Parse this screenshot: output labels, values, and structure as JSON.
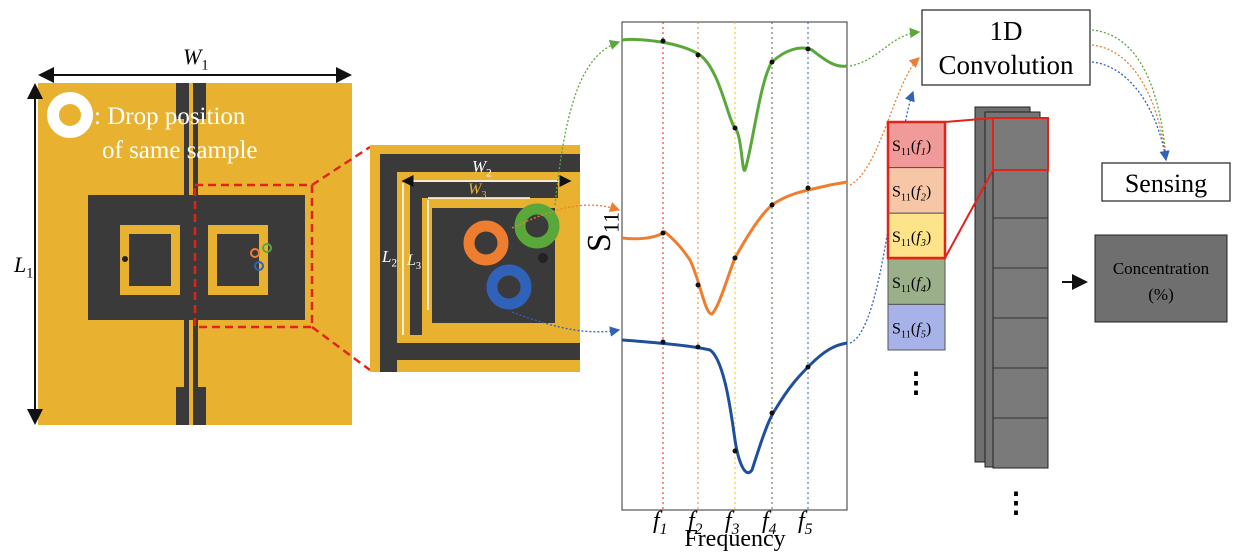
{
  "board": {
    "width_label": {
      "text": "W",
      "sub": "1"
    },
    "length_label": {
      "text": "L",
      "sub": "1"
    },
    "legend": [
      ": Drop position",
      "of same sample"
    ]
  },
  "zoom": {
    "w2": {
      "text": "W",
      "sub": "2"
    },
    "w3": {
      "text": "W",
      "sub": "3"
    },
    "l2": {
      "text": "L",
      "sub": "2"
    },
    "l3": {
      "text": "L",
      "sub": "3"
    }
  },
  "plot": {
    "y_label": {
      "text": "S",
      "sub": "11"
    },
    "x_ticks": [
      {
        "var": "f",
        "var_sub": "1"
      },
      {
        "var": "f",
        "var_sub": "2"
      },
      {
        "var": "f",
        "var_sub": "3"
      },
      {
        "var": "f",
        "var_sub": "4"
      },
      {
        "var": "f",
        "var_sub": "5"
      }
    ],
    "x_label": "Frequency"
  },
  "features": {
    "cells": [
      {
        "text": "S",
        "sub": "11",
        "open": "(",
        "var": "f",
        "var_sub": "1",
        "close": ")"
      },
      {
        "text": "S",
        "sub": "11",
        "open": "(",
        "var": "f",
        "var_sub": "2",
        "close": ")"
      },
      {
        "text": "S",
        "sub": "11",
        "open": "(",
        "var": "f",
        "var_sub": "3",
        "close": ")"
      },
      {
        "text": "S",
        "sub": "11",
        "open": "(",
        "var": "f",
        "var_sub": "4",
        "close": ")"
      },
      {
        "text": "S",
        "sub": "11",
        "open": "(",
        "var": "f",
        "var_sub": "5",
        "close": ")"
      }
    ],
    "more": "⋮"
  },
  "model": {
    "conv": [
      "1D",
      "Convolution"
    ],
    "sensing": "Sensing",
    "output": [
      "Concentration",
      "(%)"
    ],
    "maps_more": "⋮"
  }
}
